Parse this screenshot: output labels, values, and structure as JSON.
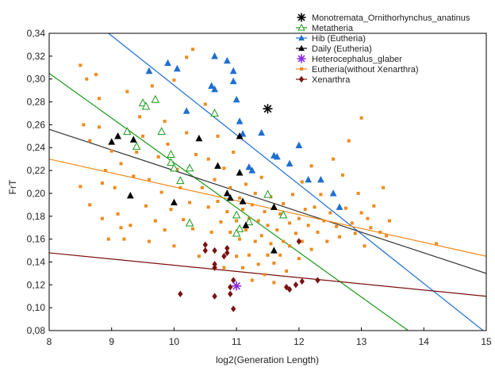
{
  "chart_data": {
    "type": "scatter",
    "xlabel": "log2(Generation Length)",
    "ylabel": "FrT",
    "xlim": [
      8,
      15
    ],
    "ylim": [
      0.08,
      0.34
    ],
    "xticks": [
      8,
      9,
      10,
      11,
      12,
      13,
      14,
      15
    ],
    "xtick_labels": [
      "8",
      "9",
      "10",
      "11",
      "12",
      "13",
      "14",
      "15"
    ],
    "yticks": [
      0.08,
      0.1,
      0.12,
      0.14,
      0.16,
      0.18,
      0.2,
      0.22,
      0.24,
      0.26,
      0.28,
      0.3,
      0.32,
      0.34
    ],
    "ytick_labels": [
      "0,08",
      "0,10",
      "0,12",
      "0,14",
      "0,16",
      "0,18",
      "0,20",
      "0,22",
      "0,24",
      "0,26",
      "0,28",
      "0,30",
      "0,32",
      "0,34"
    ],
    "legend_position": "top-right",
    "series": [
      {
        "name": "Monotremata_Ornithorhynchus_anatinus",
        "marker": "asterisk",
        "color": "#000000",
        "points": [
          [
            11.5,
            0.274
          ]
        ]
      },
      {
        "name": "Metatheria",
        "marker": "triangle-open",
        "color": "#1a9a1a",
        "points": [
          [
            9.25,
            0.254
          ],
          [
            9.4,
            0.241
          ],
          [
            9.5,
            0.279
          ],
          [
            9.55,
            0.276
          ],
          [
            9.7,
            0.282
          ],
          [
            9.8,
            0.254
          ],
          [
            9.95,
            0.234
          ],
          [
            9.95,
            0.227
          ],
          [
            10.0,
            0.222
          ],
          [
            10.1,
            0.211
          ],
          [
            10.25,
            0.222
          ],
          [
            10.25,
            0.174
          ],
          [
            10.65,
            0.27
          ],
          [
            11.0,
            0.181
          ],
          [
            11.05,
            0.169
          ],
          [
            11.2,
            0.175
          ],
          [
            11.5,
            0.199
          ],
          [
            11.75,
            0.181
          ],
          [
            11.0,
            0.165
          ]
        ]
      },
      {
        "name": "Hib (Eutheria)",
        "marker": "triangle",
        "color": "#1f6fd1",
        "points": [
          [
            9.6,
            0.307
          ],
          [
            9.9,
            0.314
          ],
          [
            10.05,
            0.309
          ],
          [
            10.2,
            0.272
          ],
          [
            10.6,
            0.294
          ],
          [
            10.65,
            0.291
          ],
          [
            10.65,
            0.32
          ],
          [
            10.85,
            0.316
          ],
          [
            10.95,
            0.307
          ],
          [
            10.95,
            0.298
          ],
          [
            11.0,
            0.282
          ],
          [
            11.05,
            0.263
          ],
          [
            11.1,
            0.252
          ],
          [
            11.2,
            0.223
          ],
          [
            11.25,
            0.22
          ],
          [
            11.4,
            0.253
          ],
          [
            11.6,
            0.233
          ],
          [
            11.65,
            0.232
          ],
          [
            11.85,
            0.226
          ],
          [
            12.0,
            0.242
          ],
          [
            12.15,
            0.212
          ],
          [
            12.35,
            0.212
          ],
          [
            12.55,
            0.2
          ],
          [
            12.65,
            0.188
          ]
        ]
      },
      {
        "name": "Daily (Eutheria)",
        "marker": "triangle",
        "color": "#000000",
        "points": [
          [
            9.0,
            0.245
          ],
          [
            9.1,
            0.25
          ],
          [
            9.3,
            0.198
          ],
          [
            9.35,
            0.247
          ],
          [
            10.0,
            0.192
          ],
          [
            10.4,
            0.248
          ],
          [
            10.7,
            0.224
          ],
          [
            10.85,
            0.2
          ],
          [
            10.9,
            0.196
          ],
          [
            11.05,
            0.25
          ],
          [
            11.05,
            0.218
          ],
          [
            11.1,
            0.193
          ],
          [
            11.15,
            0.172
          ],
          [
            11.6,
            0.188
          ],
          [
            11.6,
            0.15
          ]
        ]
      },
      {
        "name": "Heterocephalus_glaber",
        "marker": "asterisk",
        "color": "#8a2be2",
        "points": [
          [
            11.0,
            0.119
          ]
        ]
      },
      {
        "name": "Eutheria(without Xenarthra)",
        "marker": "square",
        "color": "#f08a1c",
        "points": [
          [
            8.5,
            0.312
          ],
          [
            8.5,
            0.206
          ],
          [
            8.55,
            0.26
          ],
          [
            8.6,
            0.3
          ],
          [
            8.65,
            0.19
          ],
          [
            8.65,
            0.246
          ],
          [
            8.75,
            0.304
          ],
          [
            8.8,
            0.258
          ],
          [
            8.8,
            0.283
          ],
          [
            8.85,
            0.178
          ],
          [
            8.85,
            0.209
          ],
          [
            8.9,
            0.22
          ],
          [
            8.95,
            0.16
          ],
          [
            9.0,
            0.237
          ],
          [
            9.05,
            0.205
          ],
          [
            9.1,
            0.182
          ],
          [
            9.15,
            0.17
          ],
          [
            9.15,
            0.226
          ],
          [
            9.2,
            0.16
          ],
          [
            9.25,
            0.289
          ],
          [
            9.3,
            0.172
          ],
          [
            9.35,
            0.215
          ],
          [
            9.4,
            0.236
          ],
          [
            9.45,
            0.267
          ],
          [
            9.5,
            0.25
          ],
          [
            9.55,
            0.189
          ],
          [
            9.6,
            0.212
          ],
          [
            9.6,
            0.158
          ],
          [
            9.65,
            0.294
          ],
          [
            9.7,
            0.176
          ],
          [
            9.75,
            0.232
          ],
          [
            9.8,
            0.201
          ],
          [
            9.85,
            0.168
          ],
          [
            9.85,
            0.263
          ],
          [
            9.9,
            0.243
          ],
          [
            9.95,
            0.186
          ],
          [
            10.0,
            0.154
          ],
          [
            10.0,
            0.299
          ],
          [
            10.05,
            0.221
          ],
          [
            10.1,
            0.205
          ],
          [
            10.15,
            0.177
          ],
          [
            10.2,
            0.253
          ],
          [
            10.2,
            0.319
          ],
          [
            10.25,
            0.192
          ],
          [
            10.3,
            0.326
          ],
          [
            10.3,
            0.169
          ],
          [
            10.35,
            0.234
          ],
          [
            10.4,
            0.145
          ],
          [
            10.45,
            0.205
          ],
          [
            10.5,
            0.278
          ],
          [
            10.55,
            0.188
          ],
          [
            10.55,
            0.23
          ],
          [
            10.6,
            0.166
          ],
          [
            10.65,
            0.212
          ],
          [
            10.7,
            0.193
          ],
          [
            10.7,
            0.25
          ],
          [
            10.75,
            0.175
          ],
          [
            10.8,
            0.135
          ],
          [
            10.8,
            0.222
          ],
          [
            10.85,
            0.184
          ],
          [
            10.85,
            0.152
          ],
          [
            10.9,
            0.205
          ],
          [
            10.9,
            0.166
          ],
          [
            10.95,
            0.236
          ],
          [
            11.0,
            0.176
          ],
          [
            11.0,
            0.145
          ],
          [
            11.05,
            0.196
          ],
          [
            11.05,
            0.16
          ],
          [
            11.1,
            0.186
          ],
          [
            11.1,
            0.135
          ],
          [
            11.15,
            0.208
          ],
          [
            11.15,
            0.168
          ],
          [
            11.2,
            0.178
          ],
          [
            11.2,
            0.146
          ],
          [
            11.25,
            0.19
          ],
          [
            11.25,
            0.124
          ],
          [
            11.3,
            0.2
          ],
          [
            11.3,
            0.158
          ],
          [
            11.35,
            0.176
          ],
          [
            11.35,
            0.138
          ],
          [
            11.4,
            0.214
          ],
          [
            11.4,
            0.163
          ],
          [
            11.45,
            0.184
          ],
          [
            11.45,
            0.129
          ],
          [
            11.5,
            0.172
          ],
          [
            11.5,
            0.146
          ],
          [
            11.55,
            0.197
          ],
          [
            11.55,
            0.156
          ],
          [
            11.6,
            0.139
          ],
          [
            11.6,
            0.122
          ],
          [
            11.65,
            0.168
          ],
          [
            11.7,
            0.182
          ],
          [
            11.7,
            0.146
          ],
          [
            11.75,
            0.158
          ],
          [
            11.75,
            0.191
          ],
          [
            11.8,
            0.132
          ],
          [
            11.85,
            0.174
          ],
          [
            11.85,
            0.154
          ],
          [
            11.9,
            0.199
          ],
          [
            11.95,
            0.165
          ],
          [
            12.0,
            0.178
          ],
          [
            12.0,
            0.143
          ],
          [
            12.05,
            0.21
          ],
          [
            12.05,
            0.158
          ],
          [
            12.1,
            0.186
          ],
          [
            12.15,
            0.172
          ],
          [
            12.2,
            0.224
          ],
          [
            12.2,
            0.151
          ],
          [
            12.25,
            0.188
          ],
          [
            12.3,
            0.166
          ],
          [
            12.35,
            0.199
          ],
          [
            12.4,
            0.176
          ],
          [
            12.45,
            0.158
          ],
          [
            12.5,
            0.183
          ],
          [
            12.55,
            0.23
          ],
          [
            12.6,
            0.171
          ],
          [
            12.65,
            0.162
          ],
          [
            12.7,
            0.216
          ],
          [
            12.75,
            0.187
          ],
          [
            12.8,
            0.246
          ],
          [
            12.85,
            0.174
          ],
          [
            12.9,
            0.165
          ],
          [
            12.95,
            0.2
          ],
          [
            13.0,
            0.266
          ],
          [
            13.0,
            0.183
          ],
          [
            13.05,
            0.154
          ],
          [
            13.1,
            0.178
          ],
          [
            13.15,
            0.17
          ],
          [
            13.2,
            0.189
          ],
          [
            13.3,
            0.166
          ],
          [
            13.35,
            0.205
          ],
          [
            13.4,
            0.163
          ],
          [
            13.45,
            0.176
          ],
          [
            14.2,
            0.156
          ]
        ]
      },
      {
        "name": "Xenarthra",
        "marker": "diamond",
        "color": "#7a1010",
        "points": [
          [
            10.1,
            0.112
          ],
          [
            10.5,
            0.155
          ],
          [
            10.5,
            0.15
          ],
          [
            10.65,
            0.15
          ],
          [
            10.65,
            0.138
          ],
          [
            10.65,
            0.135
          ],
          [
            10.65,
            0.11
          ],
          [
            10.8,
            0.145
          ],
          [
            10.85,
            0.152
          ],
          [
            10.85,
            0.148
          ],
          [
            10.9,
            0.118
          ],
          [
            10.9,
            0.112
          ],
          [
            10.95,
            0.124
          ],
          [
            10.95,
            0.099
          ],
          [
            12.0,
            0.158
          ],
          [
            12.05,
            0.123
          ],
          [
            12.3,
            0.124
          ],
          [
            11.95,
            0.12
          ],
          [
            11.85,
            0.116
          ],
          [
            11.8,
            0.118
          ]
        ]
      }
    ],
    "trend_lines": [
      {
        "series": "Metatheria",
        "color": "#1a9a1a",
        "from": [
          8.0,
          0.305
        ],
        "to": [
          13.75,
          0.08
        ]
      },
      {
        "series": "Hib (Eutheria)",
        "color": "#1f6fd1",
        "from": [
          8.95,
          0.34
        ],
        "to": [
          14.95,
          0.08
        ]
      },
      {
        "series": "Daily (Eutheria)",
        "color": "#333333",
        "from": [
          8.0,
          0.256
        ],
        "to": [
          15.0,
          0.13
        ]
      },
      {
        "series": "Eutheria(without Xenarthra)",
        "color": "#f08a1c",
        "from": [
          8.0,
          0.23
        ],
        "to": [
          15.0,
          0.145
        ]
      },
      {
        "series": "Xenarthra",
        "color": "#7a1010",
        "from": [
          8.0,
          0.148
        ],
        "to": [
          15.0,
          0.11
        ]
      }
    ]
  }
}
